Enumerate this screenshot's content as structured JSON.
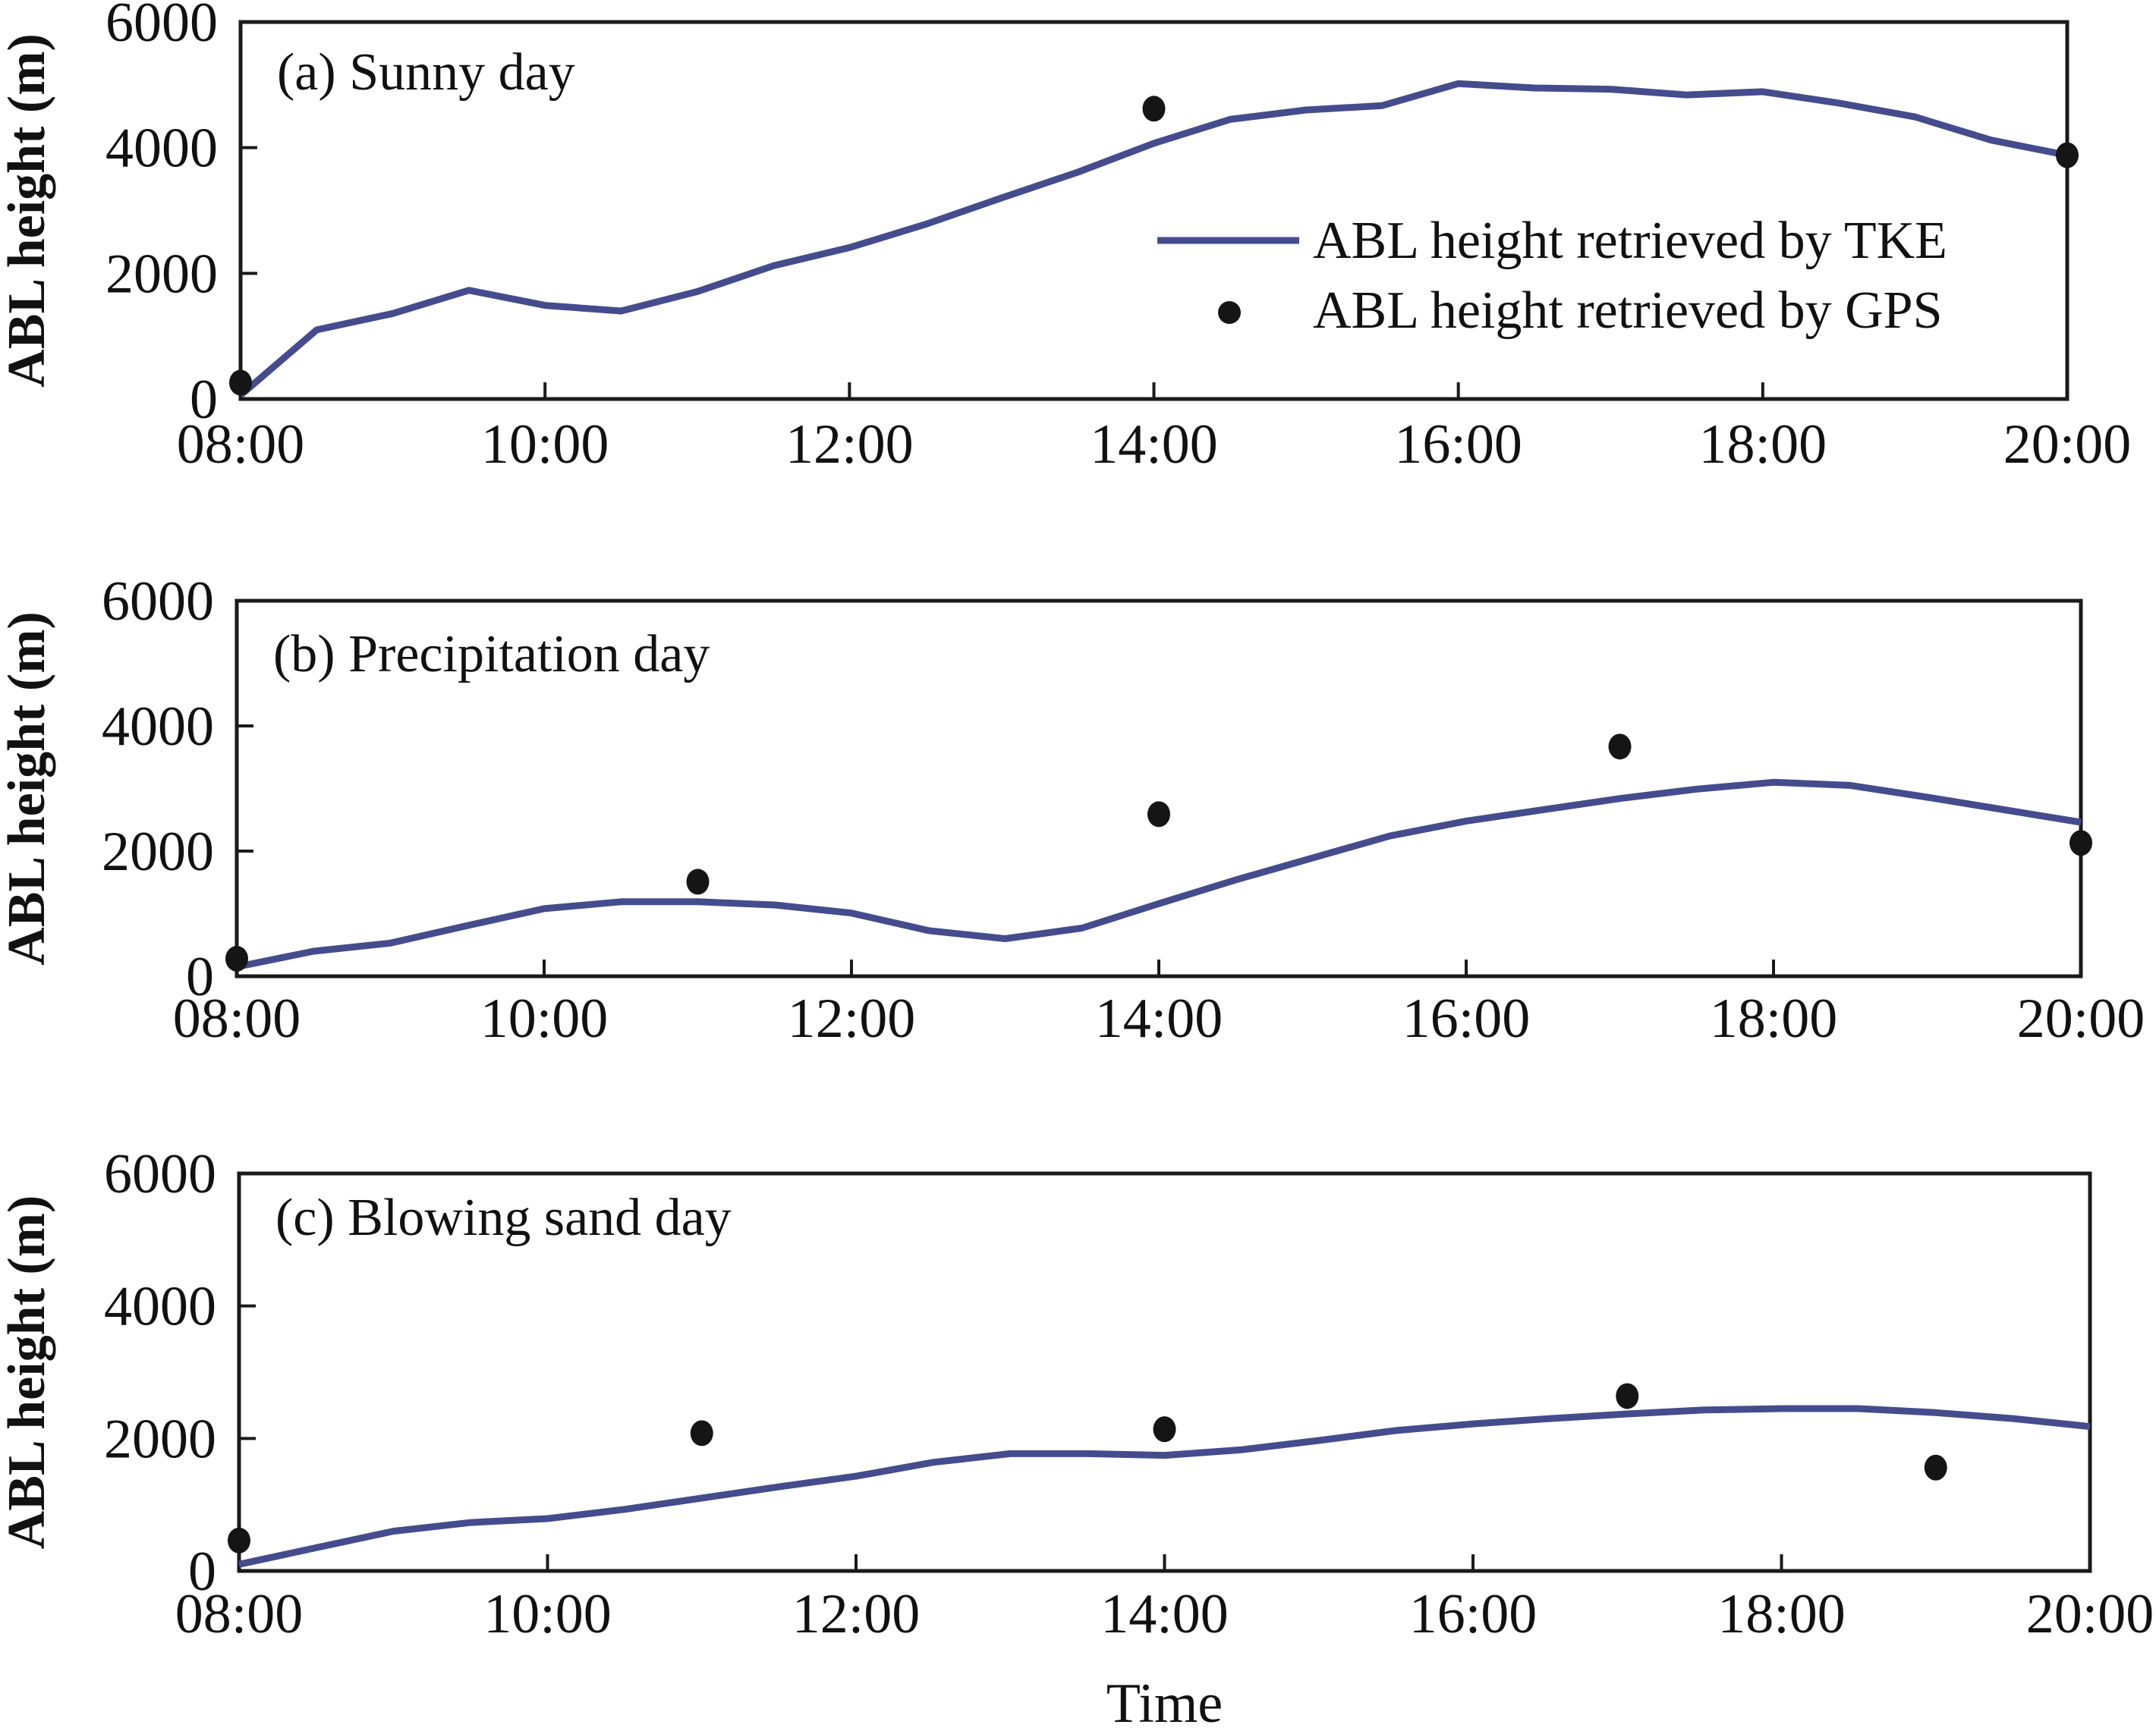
{
  "chart_data": [
    {
      "type": "line",
      "panel_label": "(a) Sunny day",
      "xlabel": "",
      "ylabel": "ABL height (m)",
      "x_tick_labels": [
        "08:00",
        "10:00",
        "12:00",
        "14:00",
        "16:00",
        "18:00",
        "20:00"
      ],
      "y_tick_labels": [
        "0",
        "2000",
        "4000",
        "6000"
      ],
      "xlim": [
        8,
        20
      ],
      "ylim": [
        0,
        6000
      ],
      "grid": false,
      "legend_position": "center-right",
      "series": [
        {
          "name": "ABL height retrieved by TKE",
          "kind": "line",
          "color": "#454c8d",
          "x": [
            8,
            8.5,
            9,
            9.5,
            10,
            10.5,
            11,
            11.5,
            12,
            12.5,
            13,
            13.5,
            14,
            14.5,
            15,
            15.5,
            16,
            16.5,
            17,
            17.5,
            18,
            18.5,
            19,
            19.5,
            20
          ],
          "y": [
            60,
            1100,
            1360,
            1730,
            1490,
            1400,
            1710,
            2120,
            2410,
            2780,
            3200,
            3610,
            4070,
            4450,
            4600,
            4670,
            5020,
            4950,
            4930,
            4840,
            4890,
            4710,
            4490,
            4120,
            3880
          ]
        },
        {
          "name": "ABL height retrieved by GPS",
          "kind": "scatter",
          "color": "#151515",
          "x": [
            8,
            14,
            20
          ],
          "y": [
            260,
            4620,
            3880
          ]
        }
      ]
    },
    {
      "type": "line",
      "panel_label": "(b) Precipitation day",
      "xlabel": "",
      "ylabel": "ABL height (m)",
      "x_tick_labels": [
        "08:00",
        "10:00",
        "12:00",
        "14:00",
        "16:00",
        "18:00",
        "20:00"
      ],
      "y_tick_labels": [
        "0",
        "2000",
        "4000",
        "6000"
      ],
      "xlim": [
        8,
        20
      ],
      "ylim": [
        0,
        6000
      ],
      "grid": false,
      "series": [
        {
          "name": "ABL height retrieved by TKE",
          "kind": "line",
          "color": "#454c8d",
          "x": [
            8,
            8.5,
            9,
            9.5,
            10,
            10.5,
            11,
            11.5,
            12,
            12.5,
            13,
            13.5,
            14,
            14.5,
            15,
            15.5,
            16,
            16.5,
            17,
            17.5,
            18,
            18.5,
            19,
            19.5,
            20
          ],
          "y": [
            150,
            400,
            530,
            810,
            1080,
            1190,
            1190,
            1140,
            1010,
            730,
            600,
            770,
            1160,
            1540,
            1890,
            2240,
            2480,
            2660,
            2840,
            2990,
            3100,
            3050,
            2860,
            2660,
            2460
          ]
        },
        {
          "name": "ABL height retrieved by GPS",
          "kind": "scatter",
          "color": "#151515",
          "x": [
            8,
            11,
            14,
            17,
            20
          ],
          "y": [
            280,
            1510,
            2590,
            3670,
            2130
          ]
        }
      ]
    },
    {
      "type": "line",
      "panel_label": "(c) Blowing sand day",
      "xlabel": "Time",
      "ylabel": "ABL height (m)",
      "x_tick_labels": [
        "08:00",
        "10:00",
        "12:00",
        "14:00",
        "16:00",
        "18:00",
        "20:00"
      ],
      "y_tick_labels": [
        "0",
        "2000",
        "4000",
        "6000"
      ],
      "xlim": [
        8,
        20
      ],
      "ylim": [
        0,
        6000
      ],
      "grid": false,
      "series": [
        {
          "name": "ABL height retrieved by TKE",
          "kind": "line",
          "color": "#454c8d",
          "x": [
            8,
            8.5,
            9,
            9.5,
            10,
            10.5,
            11,
            11.5,
            12,
            12.5,
            13,
            13.5,
            14,
            14.5,
            15,
            15.5,
            16,
            16.5,
            17,
            17.5,
            18,
            18.5,
            19,
            19.5,
            20
          ],
          "y": [
            100,
            350,
            600,
            730,
            790,
            930,
            1100,
            1270,
            1430,
            1640,
            1770,
            1770,
            1745,
            1830,
            1970,
            2120,
            2220,
            2300,
            2370,
            2430,
            2450,
            2450,
            2390,
            2300,
            2180
          ]
        },
        {
          "name": "ABL height retrieved by GPS",
          "kind": "scatter",
          "color": "#151515",
          "x": [
            8,
            11,
            14,
            17,
            19
          ],
          "y": [
            460,
            2080,
            2140,
            2640,
            1560
          ]
        }
      ]
    }
  ],
  "legend": {
    "items": [
      {
        "label": "ABL height retrieved by TKE",
        "icon": "line-swatch",
        "color": "#454c8d"
      },
      {
        "label": "ABL height retrieved by GPS",
        "icon": "dot-marker",
        "color": "#151515"
      }
    ]
  }
}
